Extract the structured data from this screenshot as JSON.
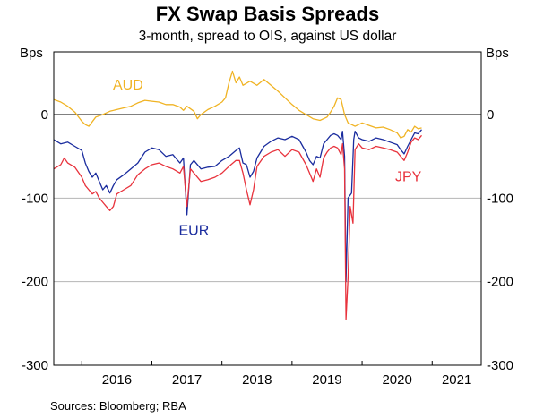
{
  "chart_data": {
    "type": "line",
    "title": "FX Swap Basis Spreads",
    "subtitle": "3-month, spread to OIS, against US dollar",
    "ylabel_left": "Bps",
    "ylabel_right": "Bps",
    "ylim": [
      -300,
      75
    ],
    "yticks": [
      0,
      -100,
      -200,
      -300
    ],
    "xlim": [
      2015.6,
      2021.7
    ],
    "xticks": [
      "2016",
      "2017",
      "2018",
      "2019",
      "2020",
      "2021"
    ],
    "grid": true,
    "source": "Sources:   Bloomberg; RBA",
    "series": [
      {
        "name": "AUD",
        "color": "#f0b323",
        "points": [
          [
            2015.6,
            18
          ],
          [
            2015.7,
            15
          ],
          [
            2015.8,
            10
          ],
          [
            2015.9,
            3
          ],
          [
            2016.0,
            -8
          ],
          [
            2016.05,
            -12
          ],
          [
            2016.1,
            -14
          ],
          [
            2016.2,
            -3
          ],
          [
            2016.3,
            0
          ],
          [
            2016.4,
            4
          ],
          [
            2016.5,
            6
          ],
          [
            2016.6,
            8
          ],
          [
            2016.7,
            10
          ],
          [
            2016.8,
            14
          ],
          [
            2016.9,
            17
          ],
          [
            2017.0,
            16
          ],
          [
            2017.1,
            15
          ],
          [
            2017.2,
            12
          ],
          [
            2017.3,
            12
          ],
          [
            2017.4,
            9
          ],
          [
            2017.45,
            5
          ],
          [
            2017.5,
            10
          ],
          [
            2017.6,
            4
          ],
          [
            2017.65,
            -5
          ],
          [
            2017.7,
            0
          ],
          [
            2017.8,
            6
          ],
          [
            2017.9,
            10
          ],
          [
            2018.0,
            15
          ],
          [
            2018.05,
            20
          ],
          [
            2018.1,
            38
          ],
          [
            2018.15,
            52
          ],
          [
            2018.2,
            38
          ],
          [
            2018.25,
            45
          ],
          [
            2018.3,
            35
          ],
          [
            2018.4,
            40
          ],
          [
            2018.5,
            35
          ],
          [
            2018.6,
            42
          ],
          [
            2018.7,
            35
          ],
          [
            2018.8,
            28
          ],
          [
            2018.9,
            20
          ],
          [
            2019.0,
            12
          ],
          [
            2019.1,
            5
          ],
          [
            2019.2,
            0
          ],
          [
            2019.3,
            -5
          ],
          [
            2019.4,
            -7
          ],
          [
            2019.5,
            -3
          ],
          [
            2019.55,
            3
          ],
          [
            2019.6,
            10
          ],
          [
            2019.65,
            20
          ],
          [
            2019.7,
            18
          ],
          [
            2019.75,
            0
          ],
          [
            2019.8,
            -10
          ],
          [
            2019.9,
            -14
          ],
          [
            2020.0,
            -10
          ],
          [
            2020.1,
            -13
          ],
          [
            2020.2,
            -16
          ],
          [
            2020.3,
            -15
          ],
          [
            2020.4,
            -18
          ],
          [
            2020.5,
            -22
          ],
          [
            2020.55,
            -28
          ],
          [
            2020.6,
            -26
          ],
          [
            2020.65,
            -18
          ],
          [
            2020.7,
            -21
          ],
          [
            2020.75,
            -14
          ],
          [
            2020.8,
            -17
          ],
          [
            2020.85,
            -16
          ]
        ]
      },
      {
        "name": "EUR",
        "color": "#1a2c9e",
        "points": [
          [
            2015.6,
            -30
          ],
          [
            2015.7,
            -35
          ],
          [
            2015.8,
            -33
          ],
          [
            2015.9,
            -38
          ],
          [
            2016.0,
            -43
          ],
          [
            2016.05,
            -58
          ],
          [
            2016.1,
            -68
          ],
          [
            2016.15,
            -75
          ],
          [
            2016.2,
            -70
          ],
          [
            2016.25,
            -80
          ],
          [
            2016.3,
            -90
          ],
          [
            2016.35,
            -85
          ],
          [
            2016.4,
            -94
          ],
          [
            2016.45,
            -85
          ],
          [
            2016.5,
            -78
          ],
          [
            2016.6,
            -72
          ],
          [
            2016.7,
            -65
          ],
          [
            2016.8,
            -58
          ],
          [
            2016.9,
            -45
          ],
          [
            2017.0,
            -40
          ],
          [
            2017.1,
            -42
          ],
          [
            2017.2,
            -50
          ],
          [
            2017.3,
            -48
          ],
          [
            2017.35,
            -53
          ],
          [
            2017.4,
            -58
          ],
          [
            2017.45,
            -52
          ],
          [
            2017.5,
            -120
          ],
          [
            2017.55,
            -60
          ],
          [
            2017.6,
            -55
          ],
          [
            2017.7,
            -65
          ],
          [
            2017.8,
            -63
          ],
          [
            2017.9,
            -62
          ],
          [
            2018.0,
            -55
          ],
          [
            2018.1,
            -50
          ],
          [
            2018.2,
            -43
          ],
          [
            2018.25,
            -40
          ],
          [
            2018.3,
            -58
          ],
          [
            2018.35,
            -60
          ],
          [
            2018.4,
            -75
          ],
          [
            2018.45,
            -68
          ],
          [
            2018.5,
            -52
          ],
          [
            2018.55,
            -45
          ],
          [
            2018.6,
            -38
          ],
          [
            2018.7,
            -32
          ],
          [
            2018.8,
            -28
          ],
          [
            2018.9,
            -30
          ],
          [
            2019.0,
            -26
          ],
          [
            2019.1,
            -30
          ],
          [
            2019.2,
            -45
          ],
          [
            2019.25,
            -55
          ],
          [
            2019.3,
            -60
          ],
          [
            2019.35,
            -50
          ],
          [
            2019.4,
            -52
          ],
          [
            2019.45,
            -35
          ],
          [
            2019.5,
            -30
          ],
          [
            2019.55,
            -25
          ],
          [
            2019.6,
            -23
          ],
          [
            2019.65,
            -25
          ],
          [
            2019.7,
            -30
          ],
          [
            2019.72,
            -20
          ],
          [
            2019.75,
            -50
          ],
          [
            2019.77,
            -200
          ],
          [
            2019.8,
            -100
          ],
          [
            2019.85,
            -94
          ],
          [
            2019.88,
            -30
          ],
          [
            2019.9,
            -20
          ],
          [
            2019.95,
            -28
          ],
          [
            2020.0,
            -30
          ],
          [
            2020.1,
            -32
          ],
          [
            2020.2,
            -28
          ],
          [
            2020.3,
            -30
          ],
          [
            2020.4,
            -33
          ],
          [
            2020.5,
            -36
          ],
          [
            2020.55,
            -42
          ],
          [
            2020.6,
            -47
          ],
          [
            2020.65,
            -38
          ],
          [
            2020.7,
            -30
          ],
          [
            2020.75,
            -22
          ],
          [
            2020.8,
            -23
          ],
          [
            2020.85,
            -18
          ]
        ]
      },
      {
        "name": "JPY",
        "color": "#e8323c",
        "points": [
          [
            2015.6,
            -65
          ],
          [
            2015.7,
            -60
          ],
          [
            2015.75,
            -52
          ],
          [
            2015.8,
            -58
          ],
          [
            2015.9,
            -63
          ],
          [
            2016.0,
            -75
          ],
          [
            2016.05,
            -85
          ],
          [
            2016.1,
            -90
          ],
          [
            2016.15,
            -95
          ],
          [
            2016.2,
            -92
          ],
          [
            2016.25,
            -100
          ],
          [
            2016.3,
            -105
          ],
          [
            2016.35,
            -110
          ],
          [
            2016.4,
            -115
          ],
          [
            2016.45,
            -110
          ],
          [
            2016.5,
            -95
          ],
          [
            2016.6,
            -90
          ],
          [
            2016.7,
            -85
          ],
          [
            2016.8,
            -72
          ],
          [
            2016.9,
            -65
          ],
          [
            2017.0,
            -60
          ],
          [
            2017.1,
            -58
          ],
          [
            2017.2,
            -62
          ],
          [
            2017.3,
            -65
          ],
          [
            2017.4,
            -70
          ],
          [
            2017.45,
            -62
          ],
          [
            2017.5,
            -110
          ],
          [
            2017.55,
            -65
          ],
          [
            2017.6,
            -70
          ],
          [
            2017.7,
            -80
          ],
          [
            2017.8,
            -78
          ],
          [
            2017.9,
            -75
          ],
          [
            2018.0,
            -70
          ],
          [
            2018.1,
            -62
          ],
          [
            2018.2,
            -55
          ],
          [
            2018.25,
            -55
          ],
          [
            2018.3,
            -70
          ],
          [
            2018.35,
            -90
          ],
          [
            2018.4,
            -108
          ],
          [
            2018.45,
            -90
          ],
          [
            2018.5,
            -62
          ],
          [
            2018.6,
            -50
          ],
          [
            2018.7,
            -45
          ],
          [
            2018.8,
            -42
          ],
          [
            2018.9,
            -50
          ],
          [
            2019.0,
            -42
          ],
          [
            2019.1,
            -45
          ],
          [
            2019.2,
            -60
          ],
          [
            2019.25,
            -70
          ],
          [
            2019.3,
            -80
          ],
          [
            2019.35,
            -65
          ],
          [
            2019.4,
            -75
          ],
          [
            2019.45,
            -52
          ],
          [
            2019.5,
            -45
          ],
          [
            2019.55,
            -40
          ],
          [
            2019.6,
            -38
          ],
          [
            2019.65,
            -40
          ],
          [
            2019.7,
            -48
          ],
          [
            2019.72,
            -35
          ],
          [
            2019.75,
            -65
          ],
          [
            2019.77,
            -245
          ],
          [
            2019.8,
            -195
          ],
          [
            2019.83,
            -110
          ],
          [
            2019.87,
            -130
          ],
          [
            2019.9,
            -42
          ],
          [
            2019.95,
            -35
          ],
          [
            2020.0,
            -40
          ],
          [
            2020.1,
            -42
          ],
          [
            2020.2,
            -38
          ],
          [
            2020.3,
            -40
          ],
          [
            2020.4,
            -42
          ],
          [
            2020.5,
            -45
          ],
          [
            2020.55,
            -50
          ],
          [
            2020.6,
            -55
          ],
          [
            2020.65,
            -45
          ],
          [
            2020.7,
            -33
          ],
          [
            2020.75,
            -28
          ],
          [
            2020.8,
            -30
          ],
          [
            2020.85,
            -25
          ]
        ]
      }
    ]
  }
}
